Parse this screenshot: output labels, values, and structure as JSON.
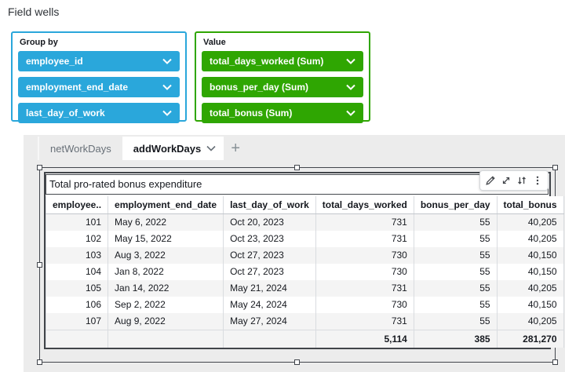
{
  "field_wells": {
    "title": "Field wells",
    "group_by": {
      "label": "Group by",
      "fields": [
        "employee_id",
        "employment_end_date",
        "last_day_of_work"
      ]
    },
    "value": {
      "label": "Value",
      "fields": [
        "total_days_worked (Sum)",
        "bonus_per_day (Sum)",
        "total_bonus (Sum)"
      ]
    }
  },
  "colors": {
    "group_by_accent": "#2AA7DB",
    "value_accent": "#2FA602"
  },
  "sheet": {
    "tabs": [
      {
        "label": "netWorkDays",
        "active": false
      },
      {
        "label": "addWorkDays",
        "active": true
      }
    ],
    "add_tab_label": "+"
  },
  "visual": {
    "title": "Total pro-rated bonus expenditure",
    "toolbar_icons": [
      "pencil",
      "maximize",
      "swap-vertical",
      "kebab-menu"
    ],
    "table": {
      "columns": [
        "employee..",
        "employment_end_date",
        "last_day_of_work",
        "total_days_worked",
        "bonus_per_day",
        "total_bonus"
      ],
      "rows": [
        [
          "101",
          "May 6, 2022",
          "Oct 20, 2023",
          "731",
          "55",
          "40,205"
        ],
        [
          "102",
          "May 15, 2022",
          "Oct 23, 2023",
          "731",
          "55",
          "40,205"
        ],
        [
          "103",
          "Aug 3, 2022",
          "Oct 27, 2023",
          "730",
          "55",
          "40,150"
        ],
        [
          "104",
          "Jan 8, 2022",
          "Oct 27, 2023",
          "730",
          "55",
          "40,150"
        ],
        [
          "105",
          "Jan 14, 2022",
          "May 21, 2024",
          "731",
          "55",
          "40,205"
        ],
        [
          "106",
          "Sep 2, 2022",
          "May 24, 2024",
          "730",
          "55",
          "40,150"
        ],
        [
          "107",
          "Aug 9, 2022",
          "May 27, 2024",
          "731",
          "55",
          "40,205"
        ]
      ],
      "totals": [
        "",
        "",
        "",
        "5,114",
        "385",
        "281,270"
      ]
    }
  }
}
